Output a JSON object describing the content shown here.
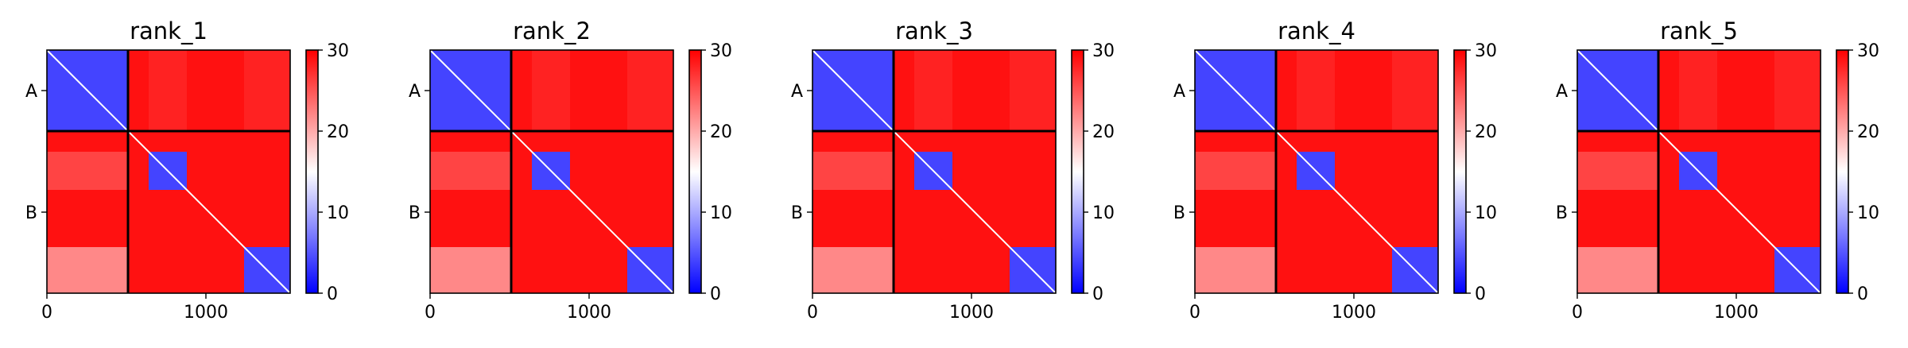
{
  "chart_data": {
    "type": "heatmap",
    "colormap": "bwr",
    "vmin": 0,
    "vmax": 30,
    "colorbar_ticks": [
      0,
      10,
      20,
      30
    ],
    "x_ticks": [
      0,
      1000
    ],
    "x_range": [
      0,
      1530
    ],
    "y_range": [
      0,
      1530
    ],
    "chain_boundaries": [
      0,
      510,
      1530
    ],
    "chains": [
      "A",
      "B"
    ],
    "domain_blocks": [
      [
        0,
        510
      ],
      [
        640,
        880
      ],
      [
        1240,
        1530
      ]
    ],
    "block_values": [
      [
        4,
        28,
        28
      ],
      [
        26,
        4,
        29
      ],
      [
        22,
        29,
        4
      ]
    ],
    "panels": [
      {
        "title": "rank_1"
      },
      {
        "title": "rank_2"
      },
      {
        "title": "rank_3"
      },
      {
        "title": "rank_4"
      },
      {
        "title": "rank_5"
      }
    ],
    "colors": {
      "low": "#0000ff",
      "mid": "#ffffff",
      "high": "#ff0000"
    }
  }
}
